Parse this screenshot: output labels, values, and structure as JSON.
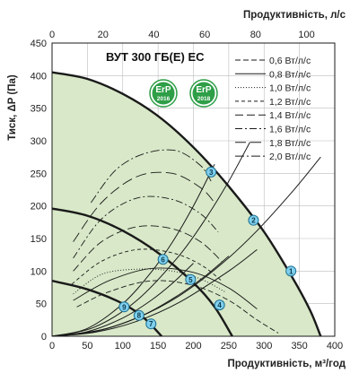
{
  "chart_data": {
    "type": "line",
    "title": "ВУТ 300 ГБ(Е) ЕС",
    "xlabel_bottom": "Продуктивність, м³/год",
    "xlabel_top": "Продуктивність, л/с",
    "ylabel": "Тиск, ΔP (Па)",
    "xlim": [
      0,
      400
    ],
    "ylim": [
      0,
      450
    ],
    "xlim_top": [
      0,
      111.1
    ],
    "x_ticks": [
      0,
      50,
      100,
      150,
      200,
      250,
      300,
      350,
      400
    ],
    "y_ticks": [
      0,
      50,
      100,
      150,
      200,
      250,
      300,
      350,
      400,
      450
    ],
    "x_top_ticks": [
      0,
      20,
      40,
      60,
      80,
      100
    ],
    "grid": true,
    "legend_position": "top-right",
    "badges": [
      {
        "label": "ErP",
        "year": "2016"
      },
      {
        "label": "ErP",
        "year": "2018"
      }
    ],
    "fan_curves": [
      {
        "points": [
          [
            0,
            405
          ],
          [
            50,
            395
          ],
          [
            100,
            372
          ],
          [
            150,
            338
          ],
          [
            200,
            290
          ],
          [
            250,
            230
          ],
          [
            300,
            160
          ],
          [
            340,
            90
          ],
          [
            365,
            40
          ],
          [
            380,
            0
          ]
        ]
      },
      {
        "points": [
          [
            0,
            196
          ],
          [
            50,
            185
          ],
          [
            100,
            162
          ],
          [
            150,
            128
          ],
          [
            200,
            82
          ],
          [
            230,
            45
          ],
          [
            255,
            0
          ]
        ]
      },
      {
        "points": [
          [
            0,
            85
          ],
          [
            50,
            72
          ],
          [
            100,
            50
          ],
          [
            130,
            28
          ],
          [
            155,
            0
          ]
        ]
      }
    ],
    "network_curves": [
      {
        "points": [
          [
            0,
            0
          ],
          [
            60,
            7
          ],
          [
            120,
            28
          ],
          [
            180,
            62
          ],
          [
            240,
            111
          ],
          [
            290,
            162
          ],
          [
            340,
            222
          ],
          [
            380,
            275
          ]
        ]
      },
      {
        "points": [
          [
            0,
            0
          ],
          [
            60,
            14
          ],
          [
            120,
            55
          ],
          [
            180,
            124
          ],
          [
            220,
            185
          ],
          [
            250,
            238
          ],
          [
            280,
            298
          ]
        ]
      },
      {
        "points": [
          [
            0,
            0
          ],
          [
            50,
            12
          ],
          [
            100,
            50
          ],
          [
            140,
            98
          ],
          [
            170,
            144
          ],
          [
            200,
            200
          ],
          [
            230,
            264
          ]
        ]
      },
      {
        "points": [
          [
            0,
            0
          ],
          [
            60,
            6
          ],
          [
            120,
            23
          ],
          [
            180,
            52
          ],
          [
            250,
            100
          ],
          [
            290,
            133
          ]
        ]
      },
      {
        "points": [
          [
            0,
            0
          ],
          [
            70,
            10
          ],
          [
            130,
            33
          ],
          [
            180,
            64
          ],
          [
            215,
            91
          ],
          [
            250,
            123
          ]
        ]
      },
      {
        "points": [
          [
            0,
            0
          ],
          [
            50,
            7
          ],
          [
            100,
            28
          ],
          [
            140,
            55
          ],
          [
            170,
            81
          ],
          [
            200,
            112
          ]
        ]
      }
    ],
    "power_curves": [
      {
        "name": "0,6 Вт/л/с",
        "dash": "6,3",
        "points": [
          [
            35,
            45
          ],
          [
            80,
            68
          ],
          [
            140,
            85
          ],
          [
            200,
            78
          ],
          [
            250,
            55
          ],
          [
            290,
            25
          ],
          [
            320,
            5
          ]
        ]
      },
      {
        "name": "0,8 Вт/л/с",
        "dash": "",
        "points": [
          [
            30,
            55
          ],
          [
            80,
            85
          ],
          [
            140,
            104
          ],
          [
            200,
            98
          ],
          [
            250,
            74
          ],
          [
            290,
            42
          ]
        ]
      },
      {
        "name": "1,0 Вт/л/с",
        "dash": "1,2",
        "points": [
          [
            30,
            65
          ],
          [
            70,
            95
          ],
          [
            120,
            103
          ],
          [
            170,
            100
          ],
          [
            210,
            88
          ],
          [
            245,
            68
          ]
        ]
      },
      {
        "name": "1,2 Вт/л/с",
        "dash": "4,3",
        "points": [
          [
            28,
            80
          ],
          [
            70,
            115
          ],
          [
            120,
            133
          ],
          [
            170,
            128
          ],
          [
            210,
            110
          ],
          [
            240,
            85
          ]
        ]
      },
      {
        "name": "1,4 Вт/л/с",
        "dash": "9,4",
        "points": [
          [
            30,
            100
          ],
          [
            70,
            145
          ],
          [
            120,
            168
          ],
          [
            170,
            165
          ],
          [
            210,
            145
          ],
          [
            240,
            115
          ]
        ]
      },
      {
        "name": "1,6 Вт/л/с",
        "dash": "8,3,2,3",
        "points": [
          [
            30,
            120
          ],
          [
            70,
            180
          ],
          [
            120,
            212
          ],
          [
            170,
            210
          ],
          [
            210,
            188
          ],
          [
            235,
            160
          ]
        ]
      },
      {
        "name": "1,8 Вт/л/с",
        "dash": "12,5",
        "points": [
          [
            30,
            145
          ],
          [
            70,
            205
          ],
          [
            120,
            245
          ],
          [
            170,
            250
          ],
          [
            210,
            228
          ],
          [
            230,
            205
          ]
        ]
      },
      {
        "name": "2,0 Вт/л/с",
        "dash": "10,3,2,3",
        "points": [
          [
            55,
            205
          ],
          [
            90,
            255
          ],
          [
            130,
            280
          ],
          [
            175,
            285
          ],
          [
            210,
            262
          ],
          [
            225,
            238
          ]
        ]
      }
    ],
    "markers": [
      {
        "label": "1",
        "x": 338,
        "y": 100
      },
      {
        "label": "2",
        "x": 285,
        "y": 178
      },
      {
        "label": "3",
        "x": 225,
        "y": 252
      },
      {
        "label": "4",
        "x": 237,
        "y": 48
      },
      {
        "label": "5",
        "x": 196,
        "y": 87
      },
      {
        "label": "6",
        "x": 157,
        "y": 118
      },
      {
        "label": "7",
        "x": 140,
        "y": 19
      },
      {
        "label": "8",
        "x": 123,
        "y": 32
      },
      {
        "label": "9",
        "x": 102,
        "y": 45
      }
    ],
    "colors": {
      "fill": "#d8e8c8",
      "curve": "#1a1a1a",
      "grid": "#bcbcbc",
      "marker_fill": "#7fd0ee",
      "marker_stroke": "#1e6f91",
      "badge_green": "#2e9e47"
    }
  }
}
